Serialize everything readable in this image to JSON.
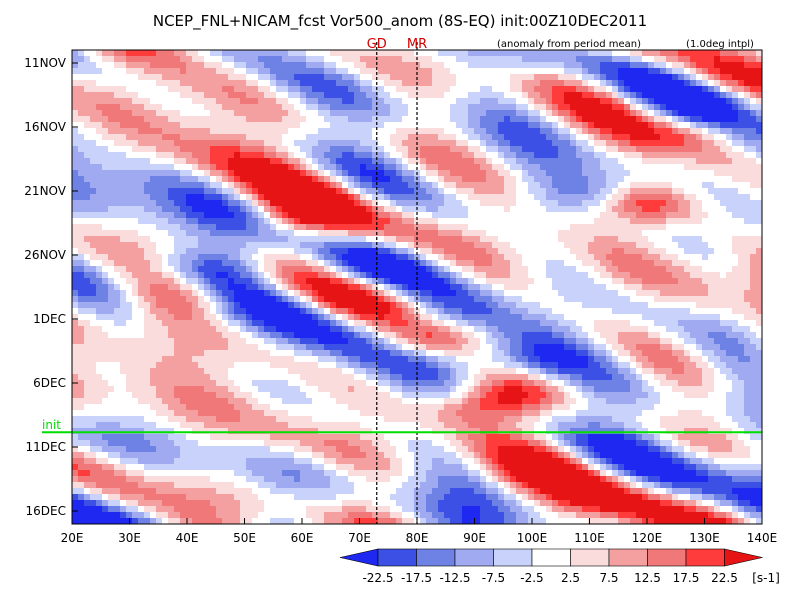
{
  "chart_data": {
    "type": "heatmap",
    "title": "NCEP_FNL+NICAM_fcst Vor500_anom (8S-EQ) init:00Z10DEC2011",
    "subtitle_left": "(anomaly from period mean)",
    "subtitle_right": "(1.0deg intpl)",
    "x_ticks": [
      "20E",
      "30E",
      "40E",
      "50E",
      "60E",
      "70E",
      "80E",
      "90E",
      "100E",
      "110E",
      "120E",
      "130E",
      "140E"
    ],
    "xlim": [
      20,
      140
    ],
    "y_ticks": [
      "11NOV",
      "16NOV",
      "21NOV",
      "26NOV",
      "1DEC",
      "6DEC",
      "11DEC",
      "16DEC"
    ],
    "y_range_days": [
      0,
      36
    ],
    "markers": [
      {
        "label": "GD",
        "lon": 73,
        "color": "#d00000"
      },
      {
        "label": "MR",
        "lon": 80,
        "color": "#d00000"
      }
    ],
    "init_line": {
      "label": "init",
      "day": 29,
      "color": "#00dd00"
    },
    "colorbar": {
      "unit": "[s-1]",
      "levels": [
        "-22.5",
        "-17.5",
        "-12.5",
        "-7.5",
        "-2.5",
        "2.5",
        "7.5",
        "12.5",
        "17.5",
        "22.5"
      ],
      "colors": [
        "#1e28f0",
        "#3c50e6",
        "#6e82e6",
        "#a0aaf0",
        "#c8d2fa",
        "#ffffff",
        "#fadcdc",
        "#f5a0a0",
        "#f07878",
        "#ff3c3c",
        "#e61414"
      ]
    },
    "features": [
      {
        "sign": "neg",
        "lon": 82,
        "day": 20.5,
        "amp": 20
      },
      {
        "sign": "neg",
        "lon": 88,
        "day": 22.5,
        "amp": 18
      },
      {
        "sign": "neg",
        "lon": 98,
        "day": 23.5,
        "amp": 18
      },
      {
        "sign": "neg",
        "lon": 70,
        "day": 16,
        "amp": 14
      },
      {
        "sign": "neg",
        "lon": 45,
        "day": 16,
        "amp": 12
      },
      {
        "sign": "neg",
        "lon": 110,
        "day": 10,
        "amp": 12
      },
      {
        "sign": "neg",
        "lon": 130,
        "day": 4,
        "amp": 10
      },
      {
        "sign": "pos",
        "lon": 60,
        "day": 12,
        "amp": 20
      },
      {
        "sign": "pos",
        "lon": 82,
        "day": 21.5,
        "amp": 18
      },
      {
        "sign": "pos",
        "lon": 120,
        "day": 11,
        "amp": 20
      },
      {
        "sign": "pos",
        "lon": 130,
        "day": 5,
        "amp": 16
      },
      {
        "sign": "pos",
        "lon": 90,
        "day": 27,
        "amp": 16
      },
      {
        "sign": "pos",
        "lon": 96,
        "day": 26,
        "amp": 14
      },
      {
        "sign": "pos",
        "lon": 40,
        "day": 18,
        "amp": 12
      }
    ]
  }
}
